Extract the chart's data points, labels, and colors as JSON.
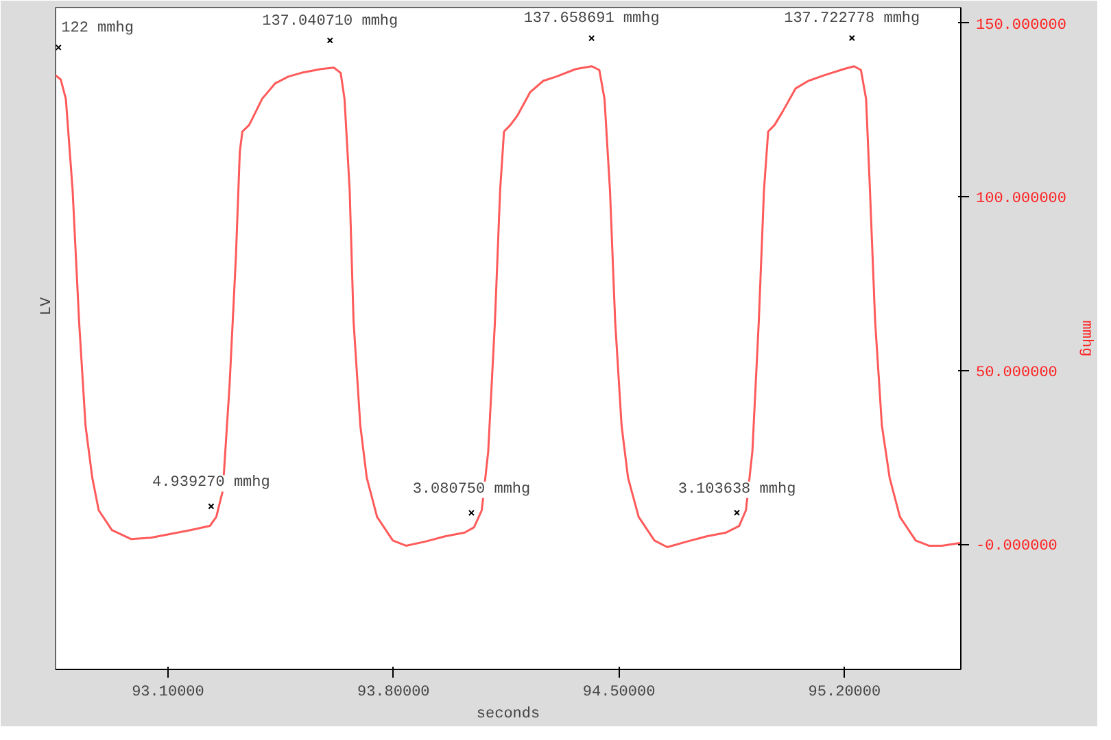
{
  "chart_data": {
    "type": "line",
    "xlabel": "seconds",
    "ylabel": "mmhg",
    "xlim": [
      92.751,
      95.561
    ],
    "ylim": [
      -36,
      154.5
    ],
    "xticks": [
      {
        "value": 93.1,
        "label": "93.10000"
      },
      {
        "value": 93.8,
        "label": "93.80000"
      },
      {
        "value": 94.5,
        "label": "94.50000"
      },
      {
        "value": 95.2,
        "label": "95.20000"
      }
    ],
    "yticks": [
      {
        "value": 0,
        "label": "-0.000000"
      },
      {
        "value": 50,
        "label": "50.000000"
      },
      {
        "value": 100,
        "label": "100.000000"
      },
      {
        "value": 150,
        "label": "150.000000"
      }
    ],
    "grid": false,
    "annotations": [
      "LV",
      {
        "text": "122 mmhg",
        "x": 92.76,
        "y": 135.0
      },
      {
        "text": "137.040710 mmhg",
        "x": 93.603,
        "y": 137.04
      },
      {
        "text": "137.658691 mmhg",
        "x": 94.415,
        "y": 137.66
      },
      {
        "text": "137.722778 mmhg",
        "x": 95.223,
        "y": 137.72
      },
      {
        "text": "4.939270 mmhg",
        "x": 93.234,
        "y": 4.94
      },
      {
        "text": "3.080750 mmhg",
        "x": 94.042,
        "y": 3.08
      },
      {
        "text": "3.103638 mmhg",
        "x": 94.866,
        "y": 3.1
      }
    ],
    "series": [
      {
        "color": "#ff5a5a",
        "x": [
          92.751,
          92.767,
          92.783,
          92.804,
          92.824,
          92.844,
          92.865,
          92.885,
          92.926,
          92.986,
          93.047,
          93.108,
          93.169,
          93.23,
          93.25,
          93.27,
          93.291,
          93.311,
          93.323,
          93.331,
          93.352,
          93.372,
          93.392,
          93.433,
          93.473,
          93.514,
          93.575,
          93.615,
          93.636,
          93.648,
          93.664,
          93.676,
          93.697,
          93.717,
          93.749,
          93.798,
          93.839,
          93.899,
          93.96,
          94.021,
          94.05,
          94.074,
          94.094,
          94.115,
          94.131,
          94.143,
          94.163,
          94.184,
          94.224,
          94.265,
          94.305,
          94.366,
          94.415,
          94.439,
          94.455,
          94.472,
          94.488,
          94.508,
          94.528,
          94.561,
          94.61,
          94.65,
          94.711,
          94.772,
          94.833,
          94.873,
          94.894,
          94.914,
          94.934,
          94.95,
          94.963,
          94.983,
          95.007,
          95.048,
          95.088,
          95.137,
          95.198,
          95.23,
          95.251,
          95.267,
          95.279,
          95.295,
          95.316,
          95.34,
          95.372,
          95.421,
          95.462,
          95.502,
          95.559
        ],
        "values": [
          135.0,
          133.8,
          128.2,
          101.9,
          64.3,
          34.2,
          19.2,
          9.8,
          4.1,
          1.5,
          1.9,
          3.0,
          4.1,
          5.3,
          7.9,
          15.4,
          45.5,
          83.1,
          113.1,
          118.8,
          120.7,
          124.4,
          128.2,
          132.7,
          134.6,
          135.7,
          136.8,
          137.2,
          135.7,
          128.2,
          101.9,
          64.3,
          34.2,
          19.2,
          7.9,
          1.1,
          -0.4,
          0.8,
          2.3,
          3.4,
          4.9,
          9.8,
          26.7,
          64.3,
          101.9,
          118.8,
          120.7,
          123.3,
          130.1,
          133.4,
          134.6,
          136.8,
          137.6,
          136.5,
          128.2,
          101.9,
          64.3,
          34.2,
          19.2,
          7.9,
          1.1,
          -0.8,
          0.8,
          2.3,
          3.4,
          5.3,
          9.8,
          26.7,
          64.3,
          101.9,
          118.8,
          120.7,
          124.4,
          131.2,
          133.4,
          135.0,
          136.8,
          137.6,
          136.5,
          128.2,
          101.9,
          64.3,
          34.2,
          19.2,
          7.9,
          1.1,
          -0.4,
          -0.4,
          0.4
        ]
      }
    ]
  }
}
